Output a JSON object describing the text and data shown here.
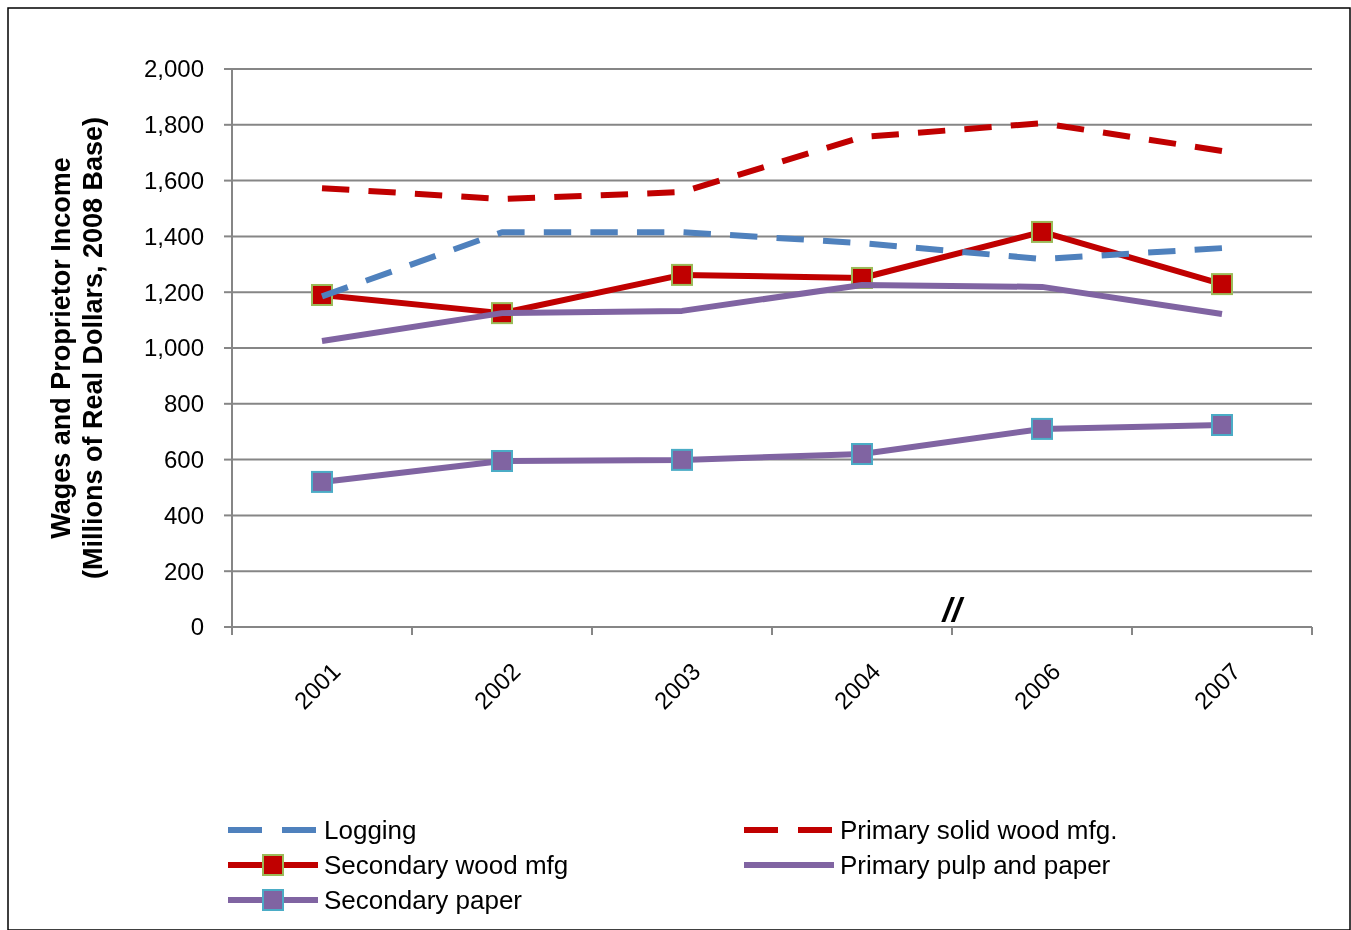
{
  "chart_data": {
    "type": "line",
    "ylabel": "Wages and Proprietor Income\n(Millions of Real Dollars, 2008 Base)",
    "categories": [
      "2001",
      "2002",
      "2003",
      "2004",
      "2006",
      "2007"
    ],
    "ylim": [
      0,
      2000
    ],
    "yticks": [
      0,
      {
        "value": 200,
        "label": "200"
      },
      {
        "value": 400,
        "label": "400"
      },
      {
        "value": 600,
        "label": "600"
      },
      {
        "value": 800,
        "label": "800"
      },
      {
        "value": 1000,
        "label": "1,000"
      },
      {
        "value": 1200,
        "label": "1,200"
      },
      {
        "value": 1400,
        "label": "1,400"
      },
      {
        "value": 1600,
        "label": "1,600"
      },
      {
        "value": 1800,
        "label": "1,800"
      },
      {
        "value": 2000,
        "label": "2,000"
      }
    ],
    "grid": "y",
    "legend": "bottom",
    "annotations": [
      "//"
    ],
    "series": [
      {
        "name": "Logging",
        "color": "#4f81bd",
        "line_style": "dashed",
        "marker": "none",
        "values": [
          1185,
          1415,
          1415,
          1376,
          1319,
          1358
        ]
      },
      {
        "name": "Primary solid wood mfg.",
        "color": "#c00000",
        "line_style": "dashed",
        "marker": "none",
        "values": [
          1573,
          1534,
          1559,
          1756,
          1806,
          1706
        ]
      },
      {
        "name": "Secondary wood mfg",
        "color": "#c00000",
        "line_style": "solid",
        "marker": "square",
        "values": [
          1190,
          1125,
          1262,
          1251,
          1416,
          1229
        ]
      },
      {
        "name": "Primary pulp and paper",
        "color": "#8064a2",
        "line_style": "solid",
        "marker": "none",
        "values": [
          1025,
          1125,
          1133,
          1226,
          1219,
          1122
        ]
      },
      {
        "name": "Secondary paper",
        "color": "#8064a2",
        "line_style": "solid",
        "marker": "square",
        "values": [
          520,
          595,
          599,
          620,
          710,
          724
        ]
      }
    ]
  }
}
